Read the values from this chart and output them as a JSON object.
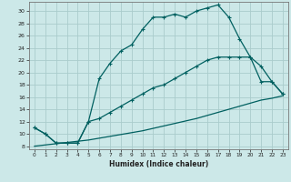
{
  "title": "",
  "xlabel": "Humidex (Indice chaleur)",
  "bg_color": "#cce8e8",
  "line_color": "#006060",
  "grid_color": "#aacccc",
  "xlim": [
    -0.5,
    23.5
  ],
  "ylim": [
    7.5,
    31.5
  ],
  "xticks": [
    0,
    1,
    2,
    3,
    4,
    5,
    6,
    7,
    8,
    9,
    10,
    11,
    12,
    13,
    14,
    15,
    16,
    17,
    18,
    19,
    20,
    21,
    22,
    23
  ],
  "yticks": [
    8,
    10,
    12,
    14,
    16,
    18,
    20,
    22,
    24,
    26,
    28,
    30
  ],
  "line1_x": [
    0,
    1,
    2,
    3,
    4,
    5,
    6,
    7,
    8,
    9,
    10,
    11,
    12,
    13,
    14,
    15,
    16,
    17,
    18,
    19,
    20,
    21,
    22,
    23
  ],
  "line1_y": [
    11.0,
    10.0,
    8.5,
    8.5,
    8.5,
    12.0,
    19.0,
    21.5,
    23.5,
    24.5,
    27.0,
    29.0,
    29.0,
    29.5,
    29.0,
    30.0,
    30.5,
    31.0,
    29.0,
    25.5,
    22.5,
    21.0,
    18.5,
    16.5
  ],
  "line2_x": [
    0,
    1,
    2,
    3,
    4,
    5,
    6,
    7,
    8,
    9,
    10,
    11,
    12,
    13,
    14,
    15,
    16,
    17,
    18,
    19,
    20,
    21,
    22,
    23
  ],
  "line2_y": [
    11.0,
    10.0,
    8.5,
    8.5,
    8.5,
    12.0,
    12.5,
    13.5,
    14.5,
    15.5,
    16.5,
    17.5,
    18.0,
    19.0,
    20.0,
    21.0,
    22.0,
    22.5,
    22.5,
    22.5,
    22.5,
    18.5,
    18.5,
    16.5
  ],
  "line3_x": [
    0,
    1,
    2,
    3,
    4,
    5,
    6,
    7,
    8,
    9,
    10,
    11,
    12,
    13,
    14,
    15,
    16,
    17,
    18,
    19,
    20,
    21,
    22,
    23
  ],
  "line3_y": [
    8.0,
    8.2,
    8.4,
    8.6,
    8.8,
    9.0,
    9.3,
    9.6,
    9.9,
    10.2,
    10.5,
    10.9,
    11.3,
    11.7,
    12.1,
    12.5,
    13.0,
    13.5,
    14.0,
    14.5,
    15.0,
    15.5,
    15.8,
    16.2
  ]
}
